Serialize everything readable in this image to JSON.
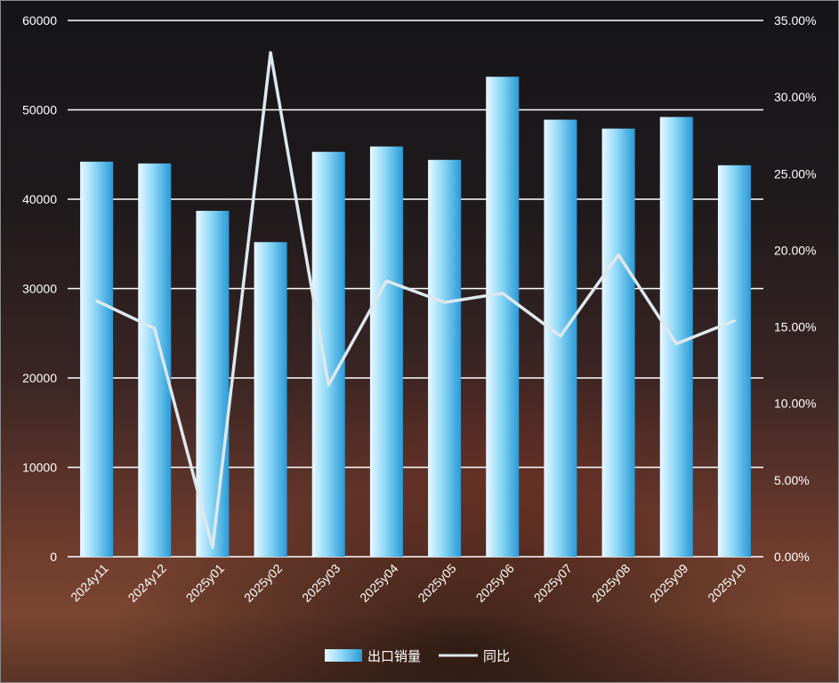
{
  "chart_data": {
    "type": "bar",
    "categories": [
      "2024y11",
      "2024y12",
      "2025y01",
      "2025y02",
      "2025y03",
      "2025y04",
      "2025y05",
      "2025y06",
      "2025y07",
      "2025y08",
      "2025y09",
      "2025y10"
    ],
    "series": [
      {
        "name": "出口销量",
        "type": "bar",
        "axis": "left",
        "values": [
          44200,
          44000,
          38700,
          35200,
          45300,
          45900,
          44400,
          53700,
          48900,
          47900,
          49200,
          43800
        ]
      },
      {
        "name": "同比",
        "type": "line",
        "axis": "right",
        "values": [
          0.167,
          0.149,
          0.006,
          0.329,
          0.112,
          0.18,
          0.166,
          0.172,
          0.144,
          0.197,
          0.139,
          0.154
        ]
      }
    ],
    "left_axis": {
      "min": 0,
      "max": 60000,
      "ticks": [
        0,
        10000,
        20000,
        30000,
        40000,
        50000,
        60000
      ],
      "tick_labels": [
        "0",
        "10000",
        "20000",
        "30000",
        "40000",
        "50000",
        "60000"
      ]
    },
    "right_axis": {
      "min": 0,
      "max": 0.35,
      "ticks": [
        0,
        0.05,
        0.1,
        0.15,
        0.2,
        0.25,
        0.3,
        0.35
      ],
      "tick_labels": [
        "0.00%",
        "5.00%",
        "10.00%",
        "15.00%",
        "20.00%",
        "25.00%",
        "30.00%",
        "35.00%"
      ]
    },
    "grid": true,
    "legend_position": "bottom",
    "colors": {
      "bar_light": "#eaf8ff",
      "bar_mid": "#6fcdf3",
      "bar_dark": "#2a9ad6",
      "line": "#dde8ee",
      "grid": "#ffffff"
    }
  }
}
